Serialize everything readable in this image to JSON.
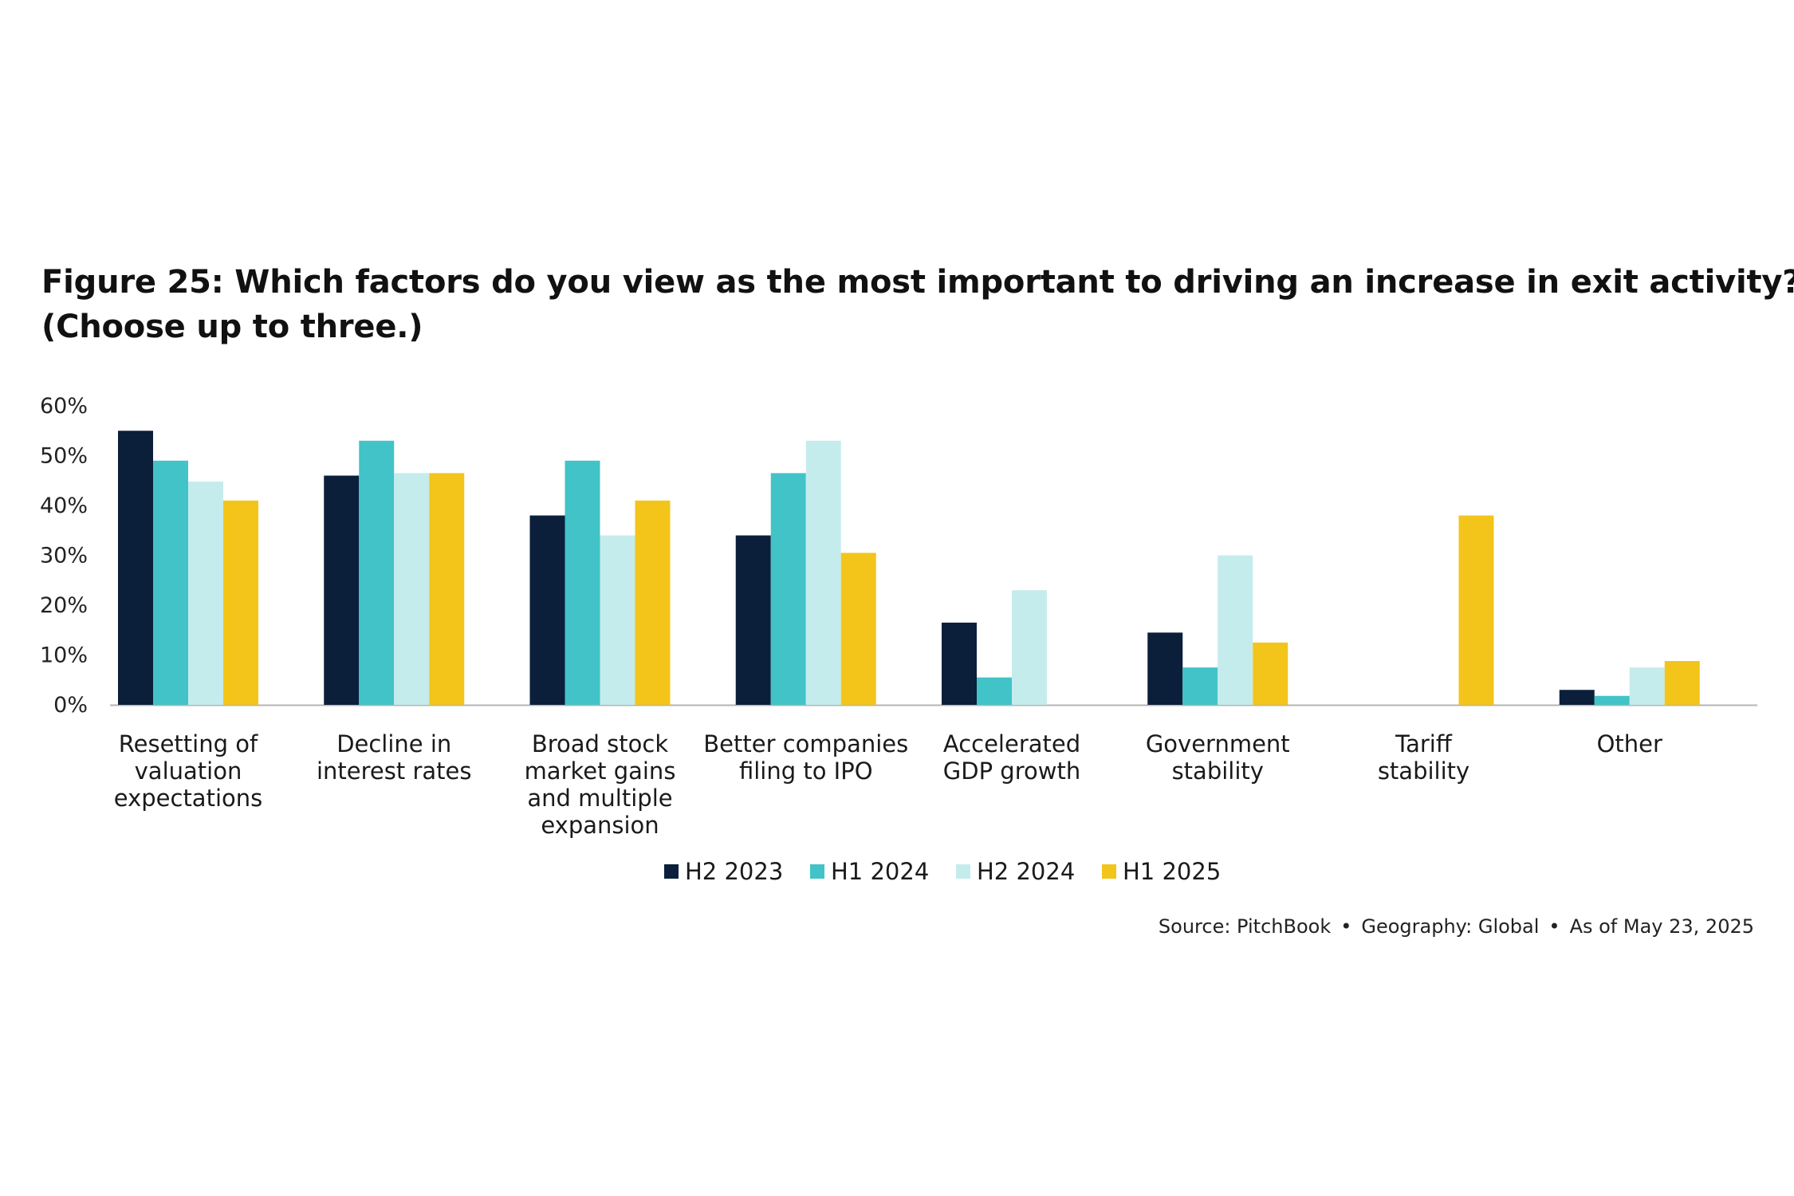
{
  "title": {
    "line1": "Figure 25: Which factors do you view as the most important to driving an increase in exit activity?",
    "line2": "(Choose up to three.)"
  },
  "source": {
    "source_text": "Source: PitchBook",
    "geography_text": "Geography: Global",
    "date_text": "As of May 23, 2025",
    "separator": "•"
  },
  "chart_data": {
    "type": "bar",
    "categories": [
      [
        "Resetting of",
        "valuation",
        "expectations"
      ],
      [
        "Decline in",
        "interest rates"
      ],
      [
        "Broad stock",
        "market gains",
        "and multiple",
        "expansion"
      ],
      [
        "Better companies",
        "filing to IPO"
      ],
      [
        "Accelerated",
        "GDP growth"
      ],
      [
        "Government",
        "stability"
      ],
      [
        "Tariff",
        "stability"
      ],
      [
        "Other"
      ]
    ],
    "series": [
      {
        "name": "H2 2023",
        "color": "#0b1f3a",
        "values": [
          55.0,
          46.0,
          38.0,
          34.0,
          16.5,
          14.5,
          null,
          3.0
        ]
      },
      {
        "name": "H1 2024",
        "color": "#42c3c8",
        "values": [
          49.0,
          53.0,
          49.0,
          46.5,
          5.5,
          7.5,
          null,
          1.8
        ]
      },
      {
        "name": "H2 2024",
        "color": "#c5ecec",
        "values": [
          44.8,
          46.5,
          34.0,
          53.0,
          23.0,
          30.0,
          null,
          7.5
        ]
      },
      {
        "name": "H1 2025",
        "color": "#f3c51b",
        "values": [
          41.0,
          46.5,
          41.0,
          30.5,
          null,
          12.5,
          38.0,
          8.8
        ]
      }
    ],
    "yticks": [
      "60%",
      "50%",
      "40%",
      "30%",
      "20%",
      "10%",
      "0%"
    ],
    "ylim": [
      0,
      60
    ],
    "xlabel": "",
    "ylabel": "",
    "legend": "bottom-center",
    "grid": false
  }
}
